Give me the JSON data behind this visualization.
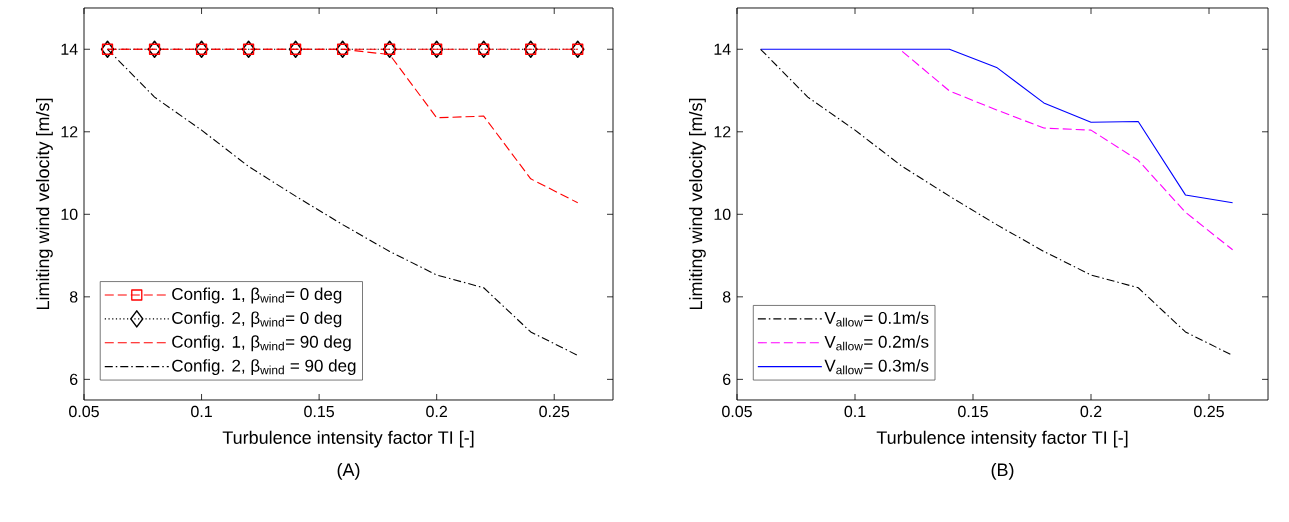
{
  "chart_data": [
    {
      "type": "line",
      "xlabel": "Turbulence intensity factor TI [-]",
      "ylabel": "Limiting wind velocity [m/s]",
      "annotations": [
        "(A)"
      ],
      "x": [
        0.06,
        0.08,
        0.1,
        0.12,
        0.14,
        0.16,
        0.18,
        0.2,
        0.22,
        0.24,
        0.26
      ],
      "xlim": [
        0.05,
        0.275
      ],
      "ylim": [
        5.5,
        15
      ],
      "xticks": [
        0.05,
        0.1,
        0.15,
        0.2,
        0.25
      ],
      "yticks": [
        6,
        8,
        10,
        12,
        14
      ],
      "legend": "bottom left",
      "series": [
        {
          "name": "Config. 1, β$_{wind}$= 0 deg",
          "color": "#ff0000",
          "marker": "square",
          "line_style": "dashed",
          "values": [
            14,
            14,
            14,
            14,
            14,
            14,
            14,
            14,
            14,
            14,
            14
          ]
        },
        {
          "name": "Config. 2, β$_{wind}$= 0 deg",
          "color": "#000000",
          "marker": "diamond",
          "line_style": "dotted",
          "values": [
            14,
            14,
            14,
            14,
            14,
            14,
            14,
            14,
            14,
            14,
            14
          ]
        },
        {
          "name": "Config. 1, β$_{wind}$= 90 deg",
          "color": "#ff0000",
          "marker": "none",
          "line_style": "dashed",
          "values": [
            14,
            14,
            14,
            14,
            14,
            14,
            13.87,
            12.34,
            12.38,
            10.86,
            10.28
          ]
        },
        {
          "name": "Config. 2, β$_{wind}$  = 90 deg",
          "color": "#000000",
          "marker": "none",
          "line_style": "dashdot",
          "values": [
            14,
            12.84,
            12.04,
            11.16,
            10.44,
            9.75,
            9.1,
            8.53,
            8.22,
            7.15,
            6.58
          ]
        }
      ]
    },
    {
      "type": "line",
      "xlabel": "Turbulence intensity factor TI [-]",
      "ylabel": "Limiting wind velocity [m/s]",
      "annotations": [
        "(B)"
      ],
      "x": [
        0.06,
        0.08,
        0.1,
        0.12,
        0.14,
        0.16,
        0.18,
        0.2,
        0.22,
        0.24,
        0.26
      ],
      "xlim": [
        0.05,
        0.275
      ],
      "ylim": [
        5.5,
        15
      ],
      "xticks": [
        0.05,
        0.1,
        0.15,
        0.2,
        0.25
      ],
      "yticks": [
        6,
        8,
        10,
        12,
        14
      ],
      "legend": "bottom left",
      "series": [
        {
          "name": "V$_{allow}$= 0.1m/s",
          "color": "#000000",
          "line_style": "dashdot",
          "values": [
            14,
            12.84,
            12.04,
            11.16,
            10.44,
            9.75,
            9.1,
            8.53,
            8.22,
            7.15,
            6.58
          ]
        },
        {
          "name": "V$_{allow}$= 0.2m/s",
          "color": "#ff00ff",
          "line_style": "dashed",
          "values": [
            null,
            null,
            null,
            13.95,
            12.99,
            12.53,
            12.09,
            12.04,
            11.31,
            10.05,
            9.14
          ]
        },
        {
          "name": "V$_{allow}$= 0.3m/s",
          "color": "#0000ff",
          "line_style": "solid",
          "values": [
            14,
            14,
            14,
            14,
            14,
            13.56,
            12.7,
            12.23,
            12.25,
            10.47,
            10.28
          ]
        }
      ]
    }
  ]
}
